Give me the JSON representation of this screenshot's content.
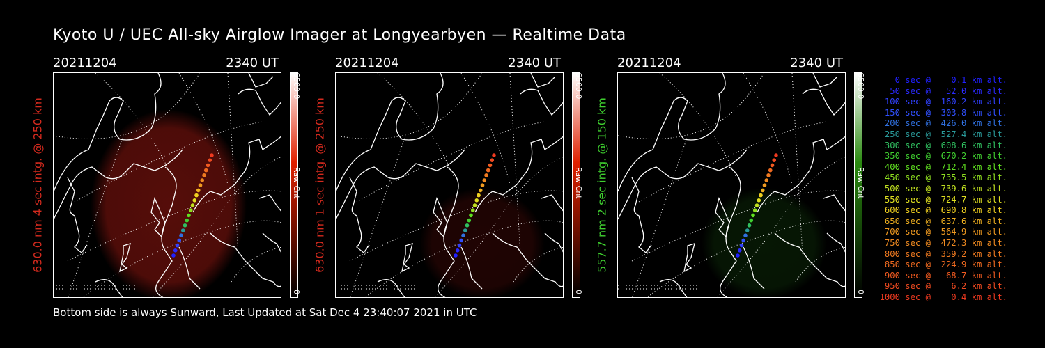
{
  "title": "Kyoto U / UEC All-sky Airglow Imager at Longyearbyen — Realtime Data",
  "footer": "Bottom side is always Sunward, Last Updated at Sat Dec  4 23:40:07 2021 in UTC",
  "panels": [
    {
      "date": "20211204",
      "time": "2340 UT",
      "side_label": "630.0 nm  4 sec intg. @ 250 km",
      "label_color": "#d42a1e",
      "cbar_max": "6500.0",
      "cbar_unit": "Raw Cnt",
      "cbar_min": "0",
      "cbar_color": "#e02000",
      "glow_color": "#5a0e0a",
      "glow": "strong"
    },
    {
      "date": "20211204",
      "time": "2340 UT",
      "side_label": "630.0 nm  1 sec intg. @ 250 km",
      "label_color": "#d42a1e",
      "cbar_max": "6500.0",
      "cbar_unit": "Raw Cnt",
      "cbar_min": "0",
      "cbar_color": "#e02000",
      "glow_color": "#3a0806",
      "glow": "faint"
    },
    {
      "date": "20211204",
      "time": "2340 UT",
      "side_label": "557.7 nm  2 sec intg. @ 150 km",
      "label_color": "#3fcf2f",
      "cbar_max": "6500.0",
      "cbar_unit": "Raw Cnt",
      "cbar_min": "0",
      "cbar_color": "#2a8a10",
      "glow_color": "#0c2a08",
      "glow": "faint"
    }
  ],
  "legend": [
    {
      "text": "   0 sec @    0.1 km alt.",
      "color": "#2020ff"
    },
    {
      "text": "  50 sec @   52.0 km alt.",
      "color": "#2a2aff"
    },
    {
      "text": " 100 sec @  160.2 km alt.",
      "color": "#3040ff"
    },
    {
      "text": " 150 sec @  303.8 km alt.",
      "color": "#3050ff"
    },
    {
      "text": " 200 sec @  426.0 km alt.",
      "color": "#3070e0"
    },
    {
      "text": " 250 sec @  527.4 km alt.",
      "color": "#2a9a9a"
    },
    {
      "text": " 300 sec @  608.6 km alt.",
      "color": "#30c060"
    },
    {
      "text": " 350 sec @  670.2 km alt.",
      "color": "#40d030"
    },
    {
      "text": " 400 sec @  712.4 km alt.",
      "color": "#60e020"
    },
    {
      "text": " 450 sec @  735.5 km alt.",
      "color": "#90e020"
    },
    {
      "text": " 500 sec @  739.6 km alt.",
      "color": "#c0e020"
    },
    {
      "text": " 550 sec @  724.7 km alt.",
      "color": "#e0e020"
    },
    {
      "text": " 600 sec @  690.8 km alt.",
      "color": "#f0d020"
    },
    {
      "text": " 650 sec @  637.6 km alt.",
      "color": "#f0b020"
    },
    {
      "text": " 700 sec @  564.9 km alt.",
      "color": "#f09a20"
    },
    {
      "text": " 750 sec @  472.3 km alt.",
      "color": "#f08a20"
    },
    {
      "text": " 800 sec @  359.2 km alt.",
      "color": "#f07a20"
    },
    {
      "text": " 850 sec @  224.9 km alt.",
      "color": "#f06a20"
    },
    {
      "text": " 900 sec @   68.7 km alt.",
      "color": "#f05a20"
    },
    {
      "text": " 950 sec @    6.2 km alt.",
      "color": "#f04a20"
    },
    {
      "text": "1000 sec @    0.4 km alt.",
      "color": "#f03a20"
    }
  ]
}
